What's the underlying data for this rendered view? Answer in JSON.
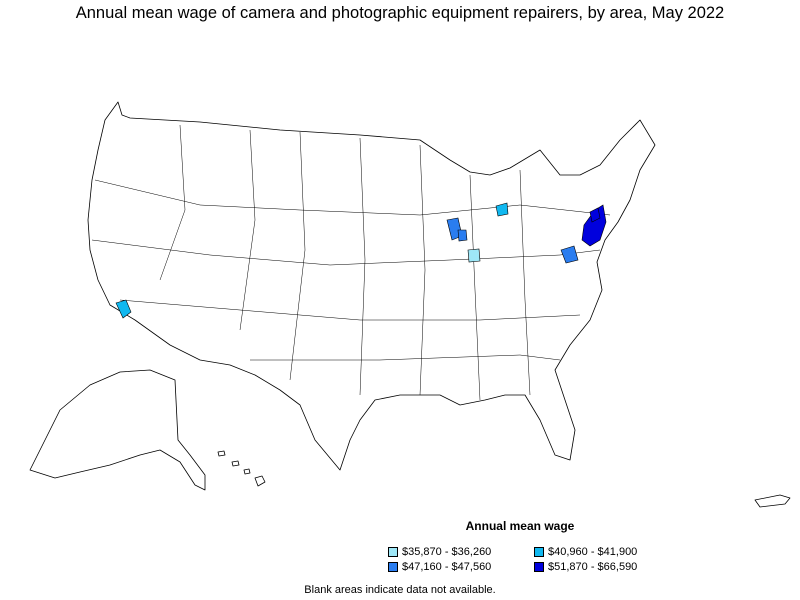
{
  "title": "Annual mean wage of camera and photographic equipment repairers, by area, May 2022",
  "legend": {
    "title": "Annual mean wage",
    "items": [
      {
        "label": "$35,870 - $36,260",
        "color": "#9ee7f7"
      },
      {
        "label": "$40,960 - $41,900",
        "color": "#10b8f0"
      },
      {
        "label": "$47,160 - $47,560",
        "color": "#2a7df0"
      },
      {
        "label": "$51,870 - $66,590",
        "color": "#0000dd"
      }
    ]
  },
  "footnote": "Blank areas indicate data not available."
}
